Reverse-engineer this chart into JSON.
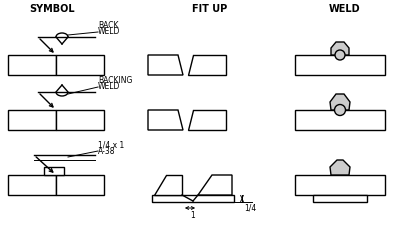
{
  "title_symbol": "SYMBOL",
  "title_fitup": "FIT UP",
  "title_weld": "WELD",
  "fg_color": "#000000",
  "weld_fill": "#cccccc",
  "back_label1": "BACK",
  "back_label2": "WELD",
  "backing_label1": "BACKING",
  "backing_label2": "WELD",
  "row3_label1": "1/4 x 1",
  "row3_label2": "A-38",
  "dim_label1": "1",
  "dim_label2": "1/4",
  "lw": 1.0
}
